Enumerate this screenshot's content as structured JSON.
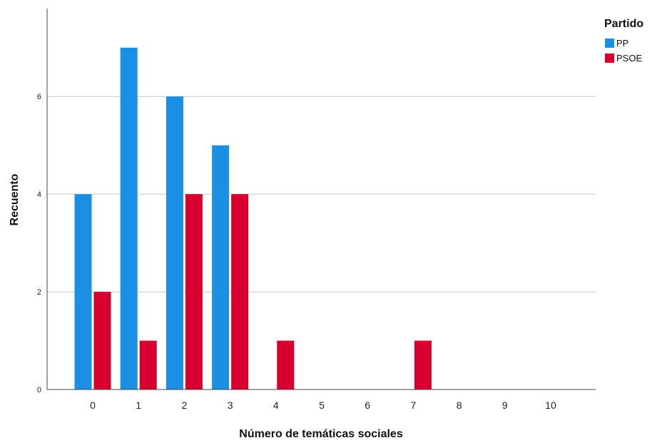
{
  "chart_data": {
    "type": "bar",
    "xlabel": "Número de temáticas sociales",
    "ylabel": "Recuento",
    "categories": [
      "0",
      "1",
      "2",
      "3",
      "4",
      "5",
      "6",
      "7",
      "8",
      "9",
      "10"
    ],
    "yticks": [
      "0",
      "2",
      "4",
      "6"
    ],
    "ylim": [
      0,
      7.8
    ],
    "grid": true,
    "legend": {
      "title": "Partido",
      "position": "top-right"
    },
    "series": [
      {
        "name": "PP",
        "color": "#1a8fe3",
        "values": [
          4,
          7,
          6,
          5,
          0,
          0,
          0,
          0,
          0,
          0,
          0
        ]
      },
      {
        "name": "PSOE",
        "color": "#d7002f",
        "values": [
          2,
          1,
          4,
          4,
          1,
          0,
          0,
          1,
          0,
          0,
          0
        ]
      }
    ]
  }
}
